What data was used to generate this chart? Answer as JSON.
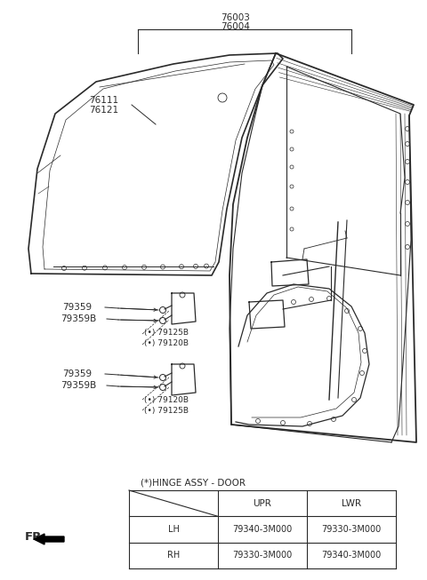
{
  "bg_color": "#ffffff",
  "line_color": "#2a2a2a",
  "text_color": "#2a2a2a",
  "font_size_tiny": 6.5,
  "font_size_small": 7.5,
  "font_size_medium": 8.5,
  "label_76003": "76003",
  "label_76004": "76004",
  "label_76111": "76111",
  "label_76121": "76121",
  "label_79359_u": "79359",
  "label_79359B_u": "79359B",
  "label_79125B_u": "(•) 79125B",
  "label_79120B_u": "(•) 79120B",
  "label_79359_l": "79359",
  "label_79359B_l": "79359B",
  "label_79120B_l": "(•) 79120B",
  "label_79125B_l": "(•) 79125B",
  "table_title": "(*)HINGE ASSY - DOOR",
  "table_headers": [
    "",
    "UPR",
    "LWR"
  ],
  "table_rows": [
    [
      "LH",
      "79340-3M000",
      "79330-3M000"
    ],
    [
      "RH",
      "79330-3M000",
      "79340-3M000"
    ]
  ],
  "fr_text": "FR."
}
